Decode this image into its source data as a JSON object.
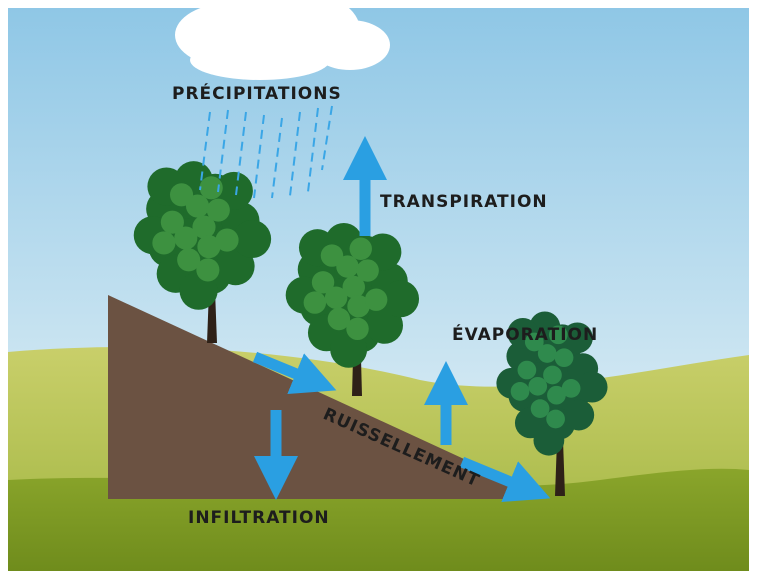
{
  "labels": {
    "precipitations": "PRÉCIPITATIONS",
    "transpiration": "TRANSPIRATION",
    "evaporation": "ÉVAPORATION",
    "ruissellement": "RUISSELLEMENT",
    "infiltration": "INFILTRATION"
  }
}
